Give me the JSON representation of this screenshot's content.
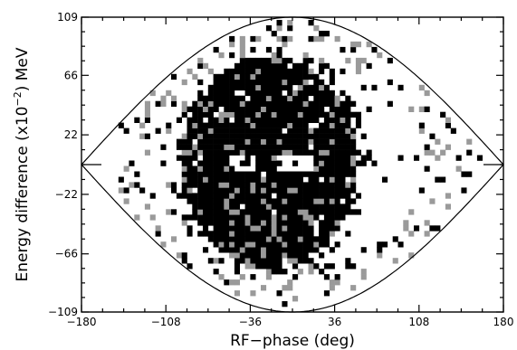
{
  "chart_data": {
    "type": "heatmap",
    "title": "",
    "xlabel": "RF−phase (deg)",
    "ylabel_prefix": "Energy difference (x10",
    "ylabel_exponent": "−2",
    "ylabel_suffix": ") MeV",
    "xlim": [
      -180,
      180
    ],
    "ylim": [
      -109,
      109
    ],
    "x_ticks": [
      -180,
      -108,
      -36,
      36,
      108,
      180
    ],
    "x_tick_labels": [
      "−180",
      "−108",
      "−36",
      "36",
      "108",
      "180"
    ],
    "y_ticks": [
      -109,
      -66,
      -22,
      22,
      66,
      109
    ],
    "y_tick_labels": [
      "−109",
      "−66",
      "−22",
      "22",
      "66",
      "109"
    ],
    "separatrix_half_height": 109,
    "core_center": [
      -22,
      0
    ],
    "core_radius": [
      75,
      78
    ],
    "halo_radius": [
      148,
      103
    ],
    "fill_color": "#000000",
    "grey_color": "#9a9a9a",
    "background": "#ffffff"
  }
}
